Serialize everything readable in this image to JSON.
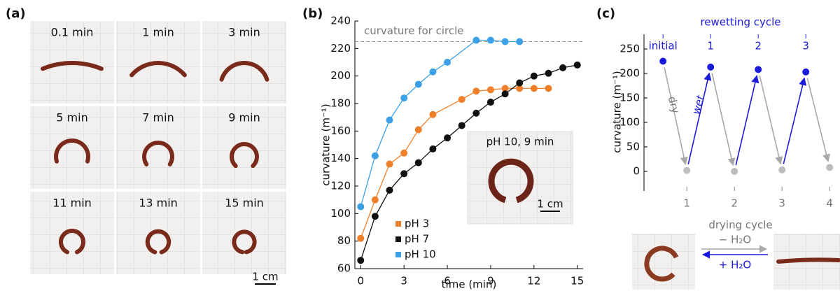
{
  "panel_a": {
    "label": "(a)",
    "captions": [
      "0.1 min",
      "1 min",
      "3 min",
      "5 min",
      "7 min",
      "9 min",
      "11 min",
      "13 min",
      "15 min"
    ],
    "scale_bar": "1 cm"
  },
  "chart_data": [
    {
      "type": "scatter",
      "panel_label": "(b)",
      "xlabel": "time (min)",
      "ylabel": "curvature (m⁻¹)",
      "xlim": [
        -0.4,
        15.4
      ],
      "ylim": [
        60,
        240
      ],
      "xticks": [
        0,
        3,
        6,
        9,
        12,
        15
      ],
      "yticks": [
        60,
        80,
        100,
        120,
        140,
        160,
        180,
        200,
        220,
        240
      ],
      "reference_line": {
        "value": 225,
        "label": "curvature for circle"
      },
      "legend": "lower left",
      "series": [
        {
          "name": "pH 3",
          "color": "#f07f2a",
          "x": [
            0,
            1,
            2,
            3,
            4,
            5,
            7,
            8,
            9,
            10,
            11,
            12,
            13
          ],
          "values": [
            82,
            110,
            136,
            144,
            161,
            172,
            183,
            189,
            190,
            191,
            191,
            191,
            191
          ]
        },
        {
          "name": "pH 7",
          "color": "#111111",
          "x": [
            0,
            1,
            2,
            3,
            4,
            5,
            6,
            7,
            8,
            9,
            10,
            11,
            12,
            13,
            14,
            15
          ],
          "values": [
            66,
            98,
            117,
            129,
            137,
            147,
            155,
            164,
            173,
            181,
            187,
            195,
            200,
            202,
            206,
            208
          ]
        },
        {
          "name": "pH 10",
          "color": "#3ca0e6",
          "x": [
            0,
            1,
            2,
            3,
            4,
            5,
            6,
            8,
            9,
            10,
            11
          ],
          "values": [
            105,
            142,
            168,
            184,
            194,
            203,
            210,
            226,
            226,
            225,
            225
          ]
        }
      ],
      "inset": {
        "title": "pH 10, 9 min",
        "scale_bar": "1 cm"
      }
    },
    {
      "type": "scatter",
      "panel_label": "(c)",
      "title": "rewetting cycle",
      "xlabel": "drying cycle",
      "ylabel": "curvature (m⁻¹)",
      "xlim": [
        -0.4,
        3.6
      ],
      "ylim": [
        -40,
        280
      ],
      "yticks": [
        0,
        50,
        100,
        150,
        200,
        250
      ],
      "xticks": [
        {
          "value": 0.5,
          "label": "1"
        },
        {
          "value": 1.5,
          "label": "2"
        },
        {
          "value": 2.5,
          "label": "3"
        },
        {
          "value": 3.5,
          "label": "4"
        }
      ],
      "x2ticks": [
        {
          "value": 0,
          "label": "initial"
        },
        1,
        2,
        3
      ],
      "series": [
        {
          "color": "#1a1adb",
          "x": [
            0,
            1,
            2,
            3
          ],
          "values": [
            225,
            213,
            208,
            203
          ]
        },
        {
          "color": "#bdbdbd",
          "x": [
            0.5,
            1.5,
            2.5,
            3.5
          ],
          "values": [
            2,
            0,
            3,
            8
          ]
        }
      ],
      "annotations": [
        "dry",
        "wet"
      ],
      "photo_labels": [
        "− H₂O",
        "+ H₂O"
      ]
    }
  ]
}
